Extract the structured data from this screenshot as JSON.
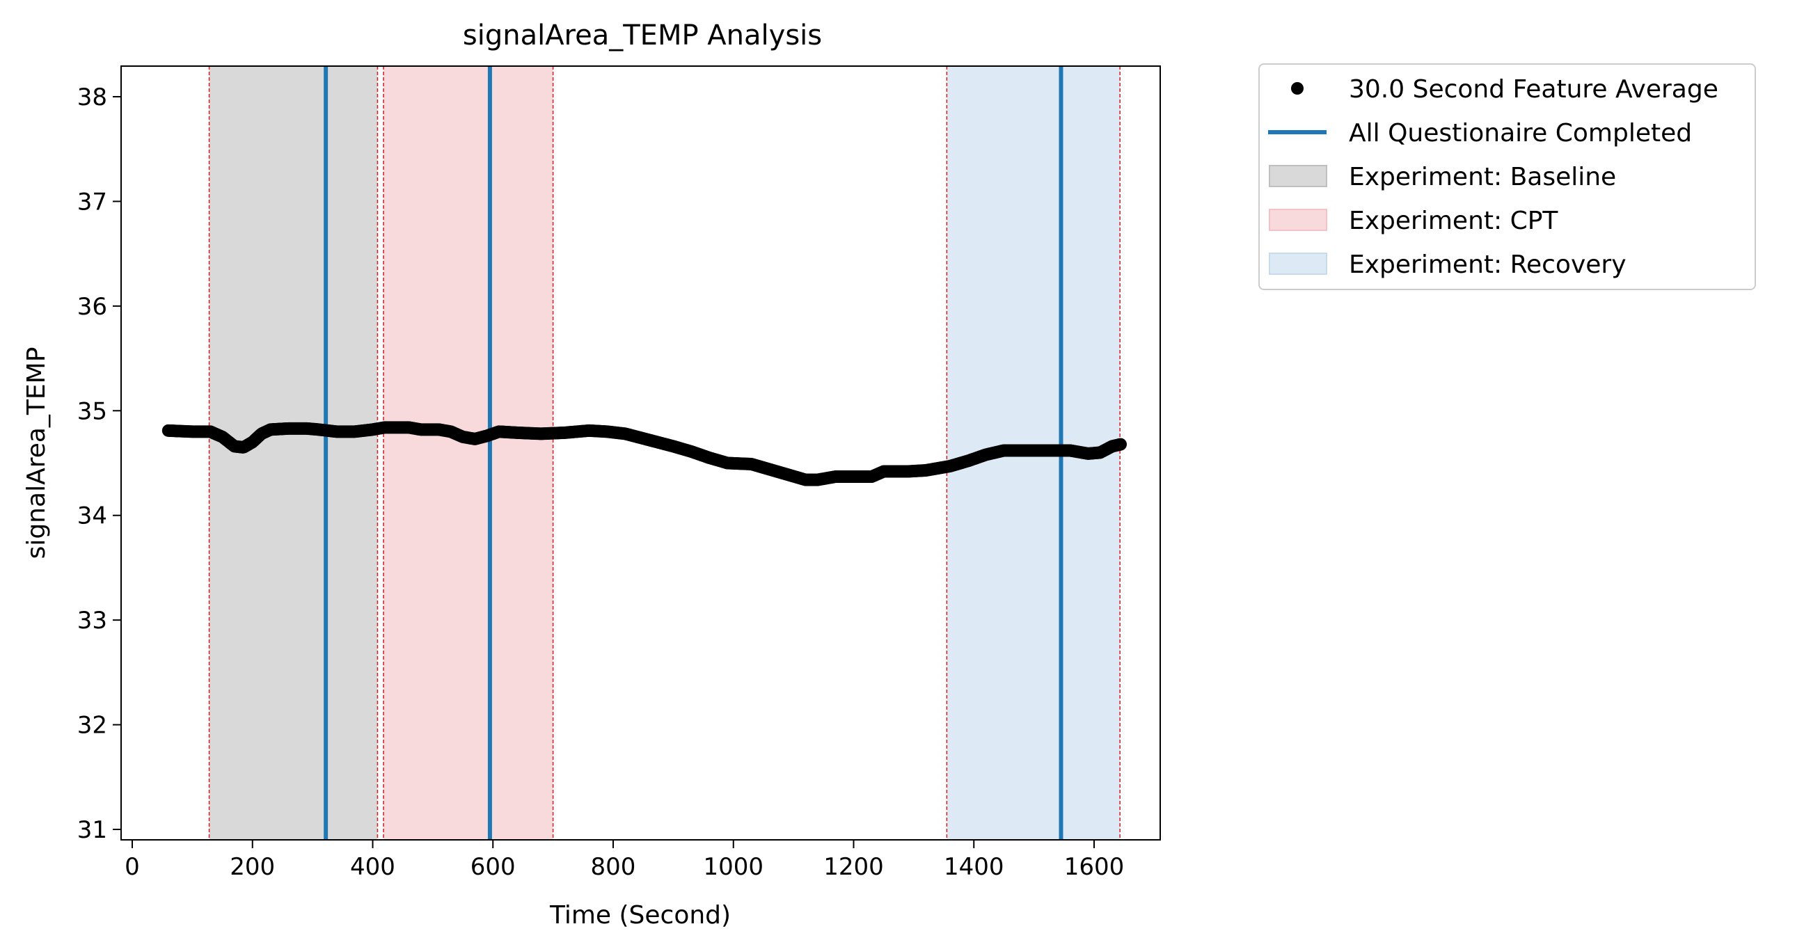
{
  "chart_data": {
    "type": "scatter",
    "title": "signalArea_TEMP Analysis",
    "xlabel": "Time (Second)",
    "ylabel": "signalArea_TEMP",
    "xlim": [
      -20,
      1720
    ],
    "ylim": [
      30.9,
      38.3
    ],
    "xticks": [
      0,
      200,
      400,
      600,
      800,
      1000,
      1200,
      1400,
      1600
    ],
    "yticks": [
      31,
      32,
      33,
      34,
      35,
      36,
      37,
      38
    ],
    "grid": false,
    "legend_position": "outside-top-right",
    "series": [
      {
        "name": "30.0 Second Feature Average",
        "kind": "points",
        "color": "#000000",
        "keypoints": [
          [
            60,
            34.81
          ],
          [
            100,
            34.8
          ],
          [
            130,
            34.8
          ],
          [
            150,
            34.75
          ],
          [
            170,
            34.66
          ],
          [
            185,
            34.65
          ],
          [
            200,
            34.7
          ],
          [
            215,
            34.78
          ],
          [
            230,
            34.82
          ],
          [
            260,
            34.83
          ],
          [
            290,
            34.83
          ],
          [
            310,
            34.82
          ],
          [
            340,
            34.8
          ],
          [
            370,
            34.8
          ],
          [
            400,
            34.82
          ],
          [
            420,
            34.84
          ],
          [
            460,
            34.84
          ],
          [
            480,
            34.82
          ],
          [
            510,
            34.82
          ],
          [
            530,
            34.8
          ],
          [
            550,
            34.75
          ],
          [
            570,
            34.73
          ],
          [
            590,
            34.76
          ],
          [
            610,
            34.8
          ],
          [
            640,
            34.79
          ],
          [
            680,
            34.78
          ],
          [
            720,
            34.79
          ],
          [
            760,
            34.81
          ],
          [
            790,
            34.8
          ],
          [
            820,
            34.78
          ],
          [
            860,
            34.72
          ],
          [
            900,
            34.66
          ],
          [
            930,
            34.61
          ],
          [
            960,
            34.55
          ],
          [
            990,
            34.5
          ],
          [
            1030,
            34.49
          ],
          [
            1060,
            34.44
          ],
          [
            1090,
            34.39
          ],
          [
            1120,
            34.34
          ],
          [
            1140,
            34.34
          ],
          [
            1170,
            34.37
          ],
          [
            1200,
            34.37
          ],
          [
            1230,
            34.37
          ],
          [
            1250,
            34.42
          ],
          [
            1290,
            34.42
          ],
          [
            1320,
            34.43
          ],
          [
            1360,
            34.47
          ],
          [
            1390,
            34.52
          ],
          [
            1420,
            34.58
          ],
          [
            1450,
            34.62
          ],
          [
            1490,
            34.62
          ],
          [
            1530,
            34.62
          ],
          [
            1560,
            34.62
          ],
          [
            1590,
            34.59
          ],
          [
            1610,
            34.6
          ],
          [
            1630,
            34.66
          ],
          [
            1645,
            34.68
          ]
        ]
      },
      {
        "name": "All Questionaire Completed",
        "kind": "vlines",
        "color": "#1f77b4",
        "x": [
          322,
          595,
          1545
        ]
      }
    ],
    "regions": [
      {
        "name": "Experiment: Baseline",
        "start": 128,
        "end": 408,
        "color": "#bfbfbf"
      },
      {
        "name": "Experiment: CPT",
        "start": 418,
        "end": 700,
        "color": "#f4c2c6"
      },
      {
        "name": "Experiment: Recovery",
        "start": 1355,
        "end": 1643,
        "color": "#c6dcee"
      }
    ],
    "boundary_lines": {
      "color": "#d62728",
      "style": "dashed",
      "x": [
        128,
        408,
        418,
        700,
        1355,
        1643
      ]
    },
    "legend": [
      "30.0 Second Feature Average",
      "All Questionaire Completed",
      "Experiment: Baseline",
      "Experiment: CPT",
      "Experiment: Recovery"
    ]
  }
}
